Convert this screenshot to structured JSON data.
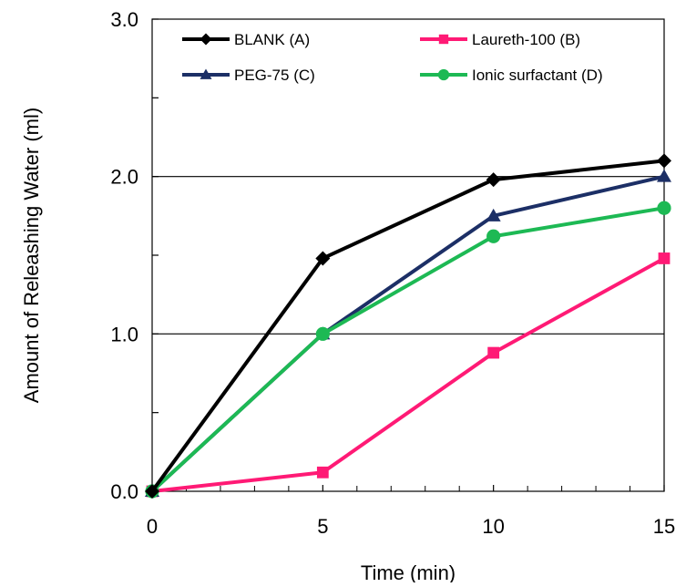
{
  "chart_data": {
    "type": "line",
    "title": "",
    "xlabel": "Time (min)",
    "ylabel": "Amount of  Releashing Water (ml)",
    "x": [
      0,
      5,
      10,
      15
    ],
    "xlim": [
      0,
      15
    ],
    "ylim": [
      0,
      3
    ],
    "x_ticks": [
      "0",
      "5",
      "10",
      "15"
    ],
    "y_ticks": [
      "0.0",
      "1.0",
      "2.0",
      "3.0"
    ],
    "gridlines_y": [
      1.0,
      2.0
    ],
    "legend_position": "top",
    "series": [
      {
        "name": "BLANK (A)",
        "color": "#000000",
        "marker": "diamond",
        "values": [
          0,
          1.48,
          1.98,
          2.1
        ]
      },
      {
        "name": "Laureth-100 (B)",
        "color": "#ff1a75",
        "marker": "square",
        "values": [
          0,
          0.12,
          0.88,
          1.48
        ]
      },
      {
        "name": "PEG-75 (C)",
        "color": "#1c2f66",
        "marker": "triangle",
        "values": [
          0,
          1.0,
          1.75,
          2.0
        ]
      },
      {
        "name": "Ionic surfactant (D)",
        "color": "#1db954",
        "marker": "circle",
        "values": [
          0,
          1.0,
          1.62,
          1.8
        ]
      }
    ]
  }
}
